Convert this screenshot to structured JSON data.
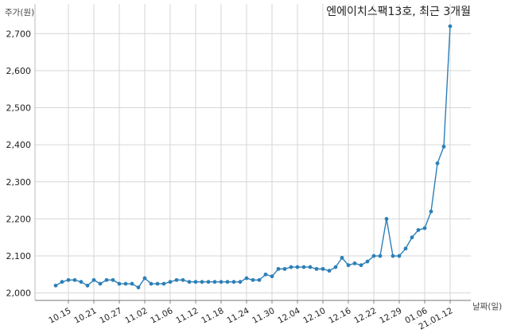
{
  "chart_data": {
    "type": "line",
    "title": "엔에이치스팩13호, 최근 3개월",
    "ylabel": "주가(원)",
    "xlabel": "날짜(일)",
    "y_tick_labels": [
      "2,000",
      "2,100",
      "2,200",
      "2,300",
      "2,400",
      "2,500",
      "2,600",
      "2,700"
    ],
    "y_ticks": [
      2000,
      2100,
      2200,
      2300,
      2400,
      2500,
      2600,
      2700
    ],
    "ylim": [
      1980,
      2780
    ],
    "x_tick_labels": [
      "10.15",
      "10.21",
      "10.27",
      "11.02",
      "11.06",
      "11.12",
      "11.18",
      "11.24",
      "11.30",
      "12.04",
      "12.10",
      "12.16",
      "12.22",
      "12.29",
      "01.06",
      "21.01.12"
    ],
    "x_tick_index": [
      2,
      6,
      10,
      14,
      18,
      22,
      26,
      30,
      34,
      38,
      42,
      46,
      50,
      54,
      58,
      62
    ],
    "grid": true,
    "color": "#2c7fb8",
    "series": [
      {
        "values": [
          2020,
          2030,
          2035,
          2035,
          2030,
          2020,
          2035,
          2025,
          2035,
          2035,
          2025,
          2025,
          2025,
          2015,
          2040,
          2025,
          2025,
          2025,
          2030,
          2035,
          2035,
          2030,
          2030,
          2030,
          2030,
          2030,
          2030,
          2030,
          2030,
          2030,
          2040,
          2035,
          2035,
          2050,
          2045,
          2065,
          2065,
          2070,
          2070,
          2070,
          2070,
          2065,
          2065,
          2060,
          2070,
          2095,
          2075,
          2080,
          2075,
          2085,
          2100,
          2100,
          2200,
          2100,
          2100,
          2120,
          2150,
          2170,
          2175,
          2220,
          2350,
          2395,
          2720
        ]
      }
    ]
  }
}
